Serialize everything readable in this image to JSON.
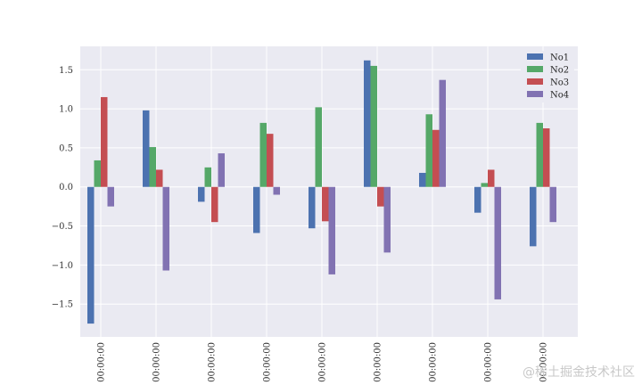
{
  "chart_data": {
    "type": "bar",
    "title": "",
    "xlabel": "",
    "ylabel": "",
    "categories": [
      "00:00:00",
      "00:00:00",
      "00:00:00",
      "00:00:00",
      "00:00:00",
      "00:00:00",
      "00:00:00",
      "00:00:00",
      "00:00:00"
    ],
    "ylim": [
      -1.92,
      1.8
    ],
    "yticks": [
      -1.5,
      -1.0,
      -0.5,
      0.0,
      0.5,
      1.0,
      1.5
    ],
    "ytick_labels": [
      "−1.5",
      "−1.0",
      "−0.5",
      "0.0",
      "0.5",
      "1.0",
      "1.5"
    ],
    "grid": true,
    "legend_position": "top-right",
    "series": [
      {
        "name": "No1",
        "color": "#4c72b0",
        "values": [
          -1.75,
          0.98,
          -0.19,
          -0.59,
          -0.53,
          1.62,
          0.18,
          -0.33,
          -0.76
        ]
      },
      {
        "name": "No2",
        "color": "#55a868",
        "values": [
          0.34,
          0.51,
          0.25,
          0.82,
          1.02,
          1.55,
          0.93,
          0.05,
          0.82
        ]
      },
      {
        "name": "No3",
        "color": "#c44e52",
        "values": [
          1.15,
          0.22,
          -0.45,
          0.68,
          -0.44,
          -0.25,
          0.73,
          0.22,
          0.75
        ]
      },
      {
        "name": "No4",
        "color": "#8172b2",
        "values": [
          -0.25,
          -1.07,
          0.43,
          -0.1,
          -1.12,
          -0.84,
          1.37,
          -1.44,
          -0.45
        ]
      }
    ]
  },
  "watermark": "@稀土掘金技术社区"
}
